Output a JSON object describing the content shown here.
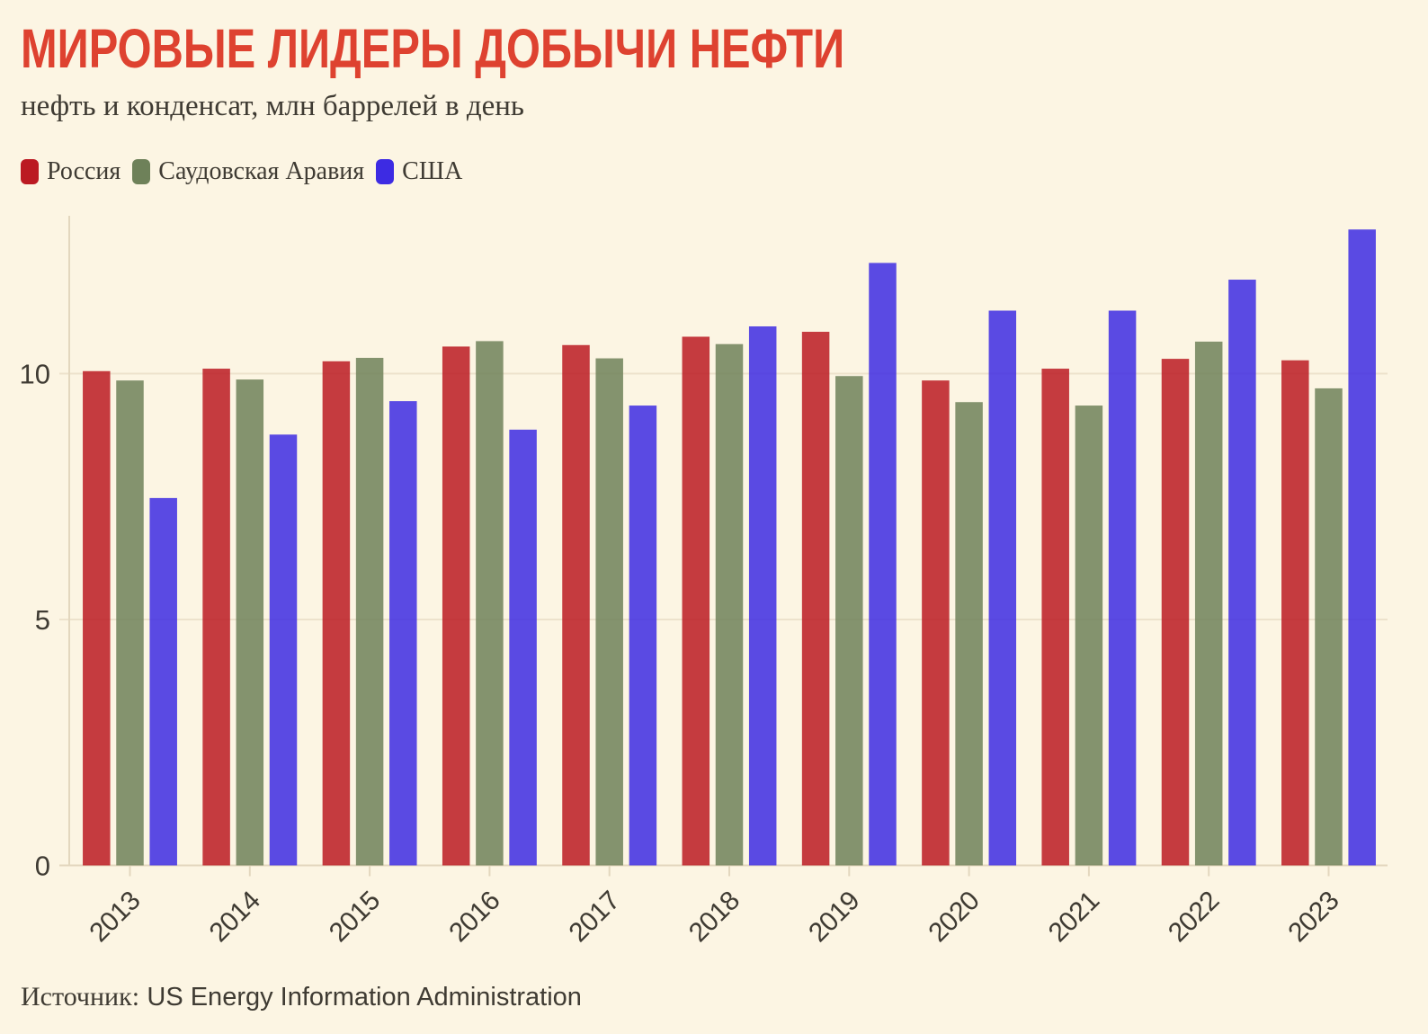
{
  "title": "МИРОВЫЕ ЛИДЕРЫ ДОБЫЧИ НЕФТИ",
  "subtitle": "нефть и конденсат, млн баррелей в день",
  "source": {
    "label": "Источник:",
    "value": "US Energy Information Administration"
  },
  "colors": {
    "background": "#FCF5E3",
    "title": "#DE4230",
    "text": "#3F3B33",
    "grid": "#EDE2CC",
    "axis": "#E3D7BE"
  },
  "chart_data": {
    "type": "bar",
    "title": "МИРОВЫЕ ЛИДЕРЫ ДОБЫЧИ НЕФТИ",
    "subtitle": "нефть и конденсат, млн баррелей в день",
    "categories": [
      "2013",
      "2014",
      "2015",
      "2016",
      "2017",
      "2018",
      "2019",
      "2020",
      "2021",
      "2022",
      "2023"
    ],
    "series": [
      {
        "name": "Россия",
        "color": "#BB1A22",
        "values": [
          10.05,
          10.1,
          10.25,
          10.55,
          10.58,
          10.75,
          10.85,
          9.86,
          10.1,
          10.3,
          10.27
        ]
      },
      {
        "name": "Саудовская Аравия",
        "color": "#6E8159",
        "values": [
          9.86,
          9.88,
          10.32,
          10.66,
          10.31,
          10.6,
          9.95,
          9.42,
          9.35,
          10.65,
          9.7
        ]
      },
      {
        "name": "США",
        "color": "#3D2BE3",
        "values": [
          7.47,
          8.76,
          9.44,
          8.86,
          9.35,
          10.96,
          12.25,
          11.28,
          11.28,
          11.91,
          12.93
        ]
      }
    ],
    "yticks": [
      0,
      5,
      10
    ],
    "ylim": [
      0,
      13.2
    ],
    "bar_opacity": 0.85,
    "grid": true,
    "legend_position": "top"
  }
}
